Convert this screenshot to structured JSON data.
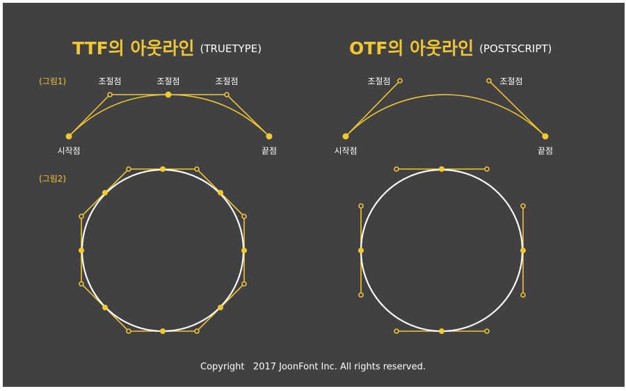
{
  "ttf": {
    "title": "TTF의 아웃라인",
    "subtitle": "(TRUETYPE)",
    "figure1_label": "(그림1)",
    "figure2_label": "(그림2)",
    "control_label": "조절점",
    "start_label": "시작점",
    "end_label": "끝점"
  },
  "otf": {
    "title": "OTF의 아웃라인",
    "subtitle": "(POSTSCRIPT)",
    "control_label": "조절점",
    "start_label": "시작점",
    "end_label": "끝점"
  },
  "footer": "Copyright   2017 JoonFont Inc. All rights reserved.",
  "colors": {
    "background": "#414042",
    "accent": "#f2c832",
    "curve_white": "#ffffff"
  }
}
